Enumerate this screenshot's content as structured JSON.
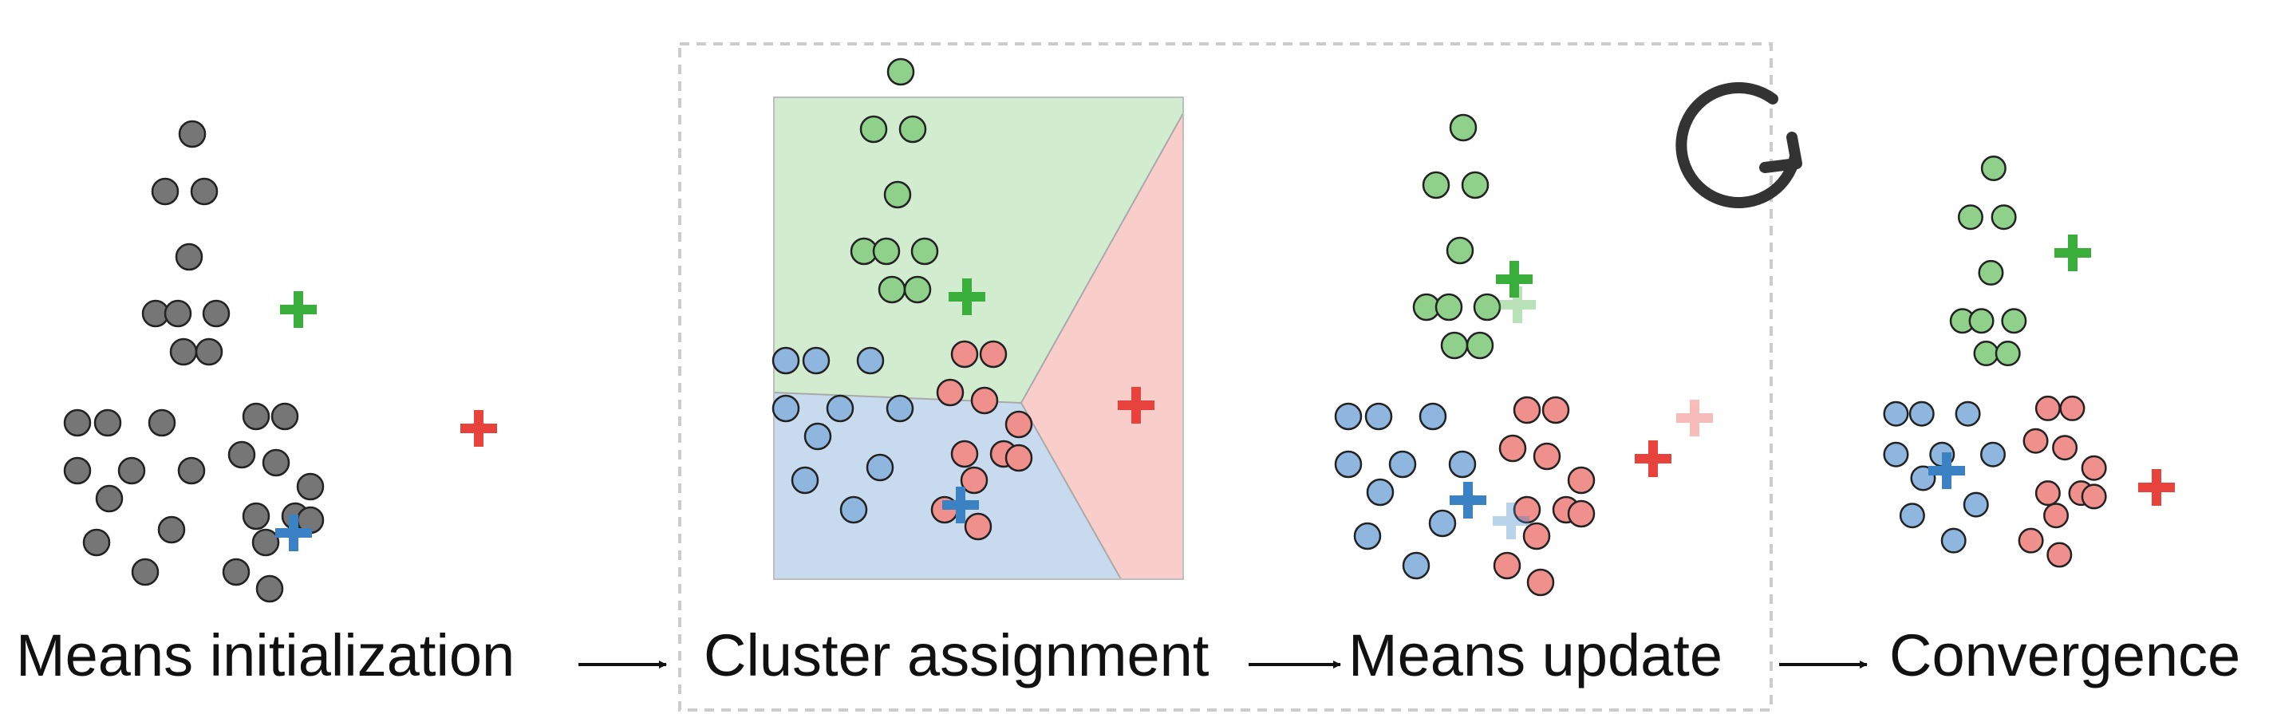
{
  "stages": [
    {
      "id": "init",
      "label": "Means initialization"
    },
    {
      "id": "assign",
      "label": "Cluster assignment"
    },
    {
      "id": "update",
      "label": "Means update"
    },
    {
      "id": "converge",
      "label": "Convergence"
    }
  ],
  "colors": {
    "grey_point": "#767676",
    "green_point": "#8fd18a",
    "blue_point": "#8fb6de",
    "red_point": "#f0908c",
    "green_mean": "#3aae3a",
    "blue_mean": "#3a82c4",
    "red_mean": "#e8423c",
    "green_region": "#d2ecd0",
    "blue_region": "#c8dbee",
    "red_region": "#f9cdc9",
    "loop_arrow": "#333333",
    "frame": "#cccccc"
  },
  "icons": {
    "loop": "circular-arrow-icon",
    "flow": "right-arrow-icon"
  }
}
